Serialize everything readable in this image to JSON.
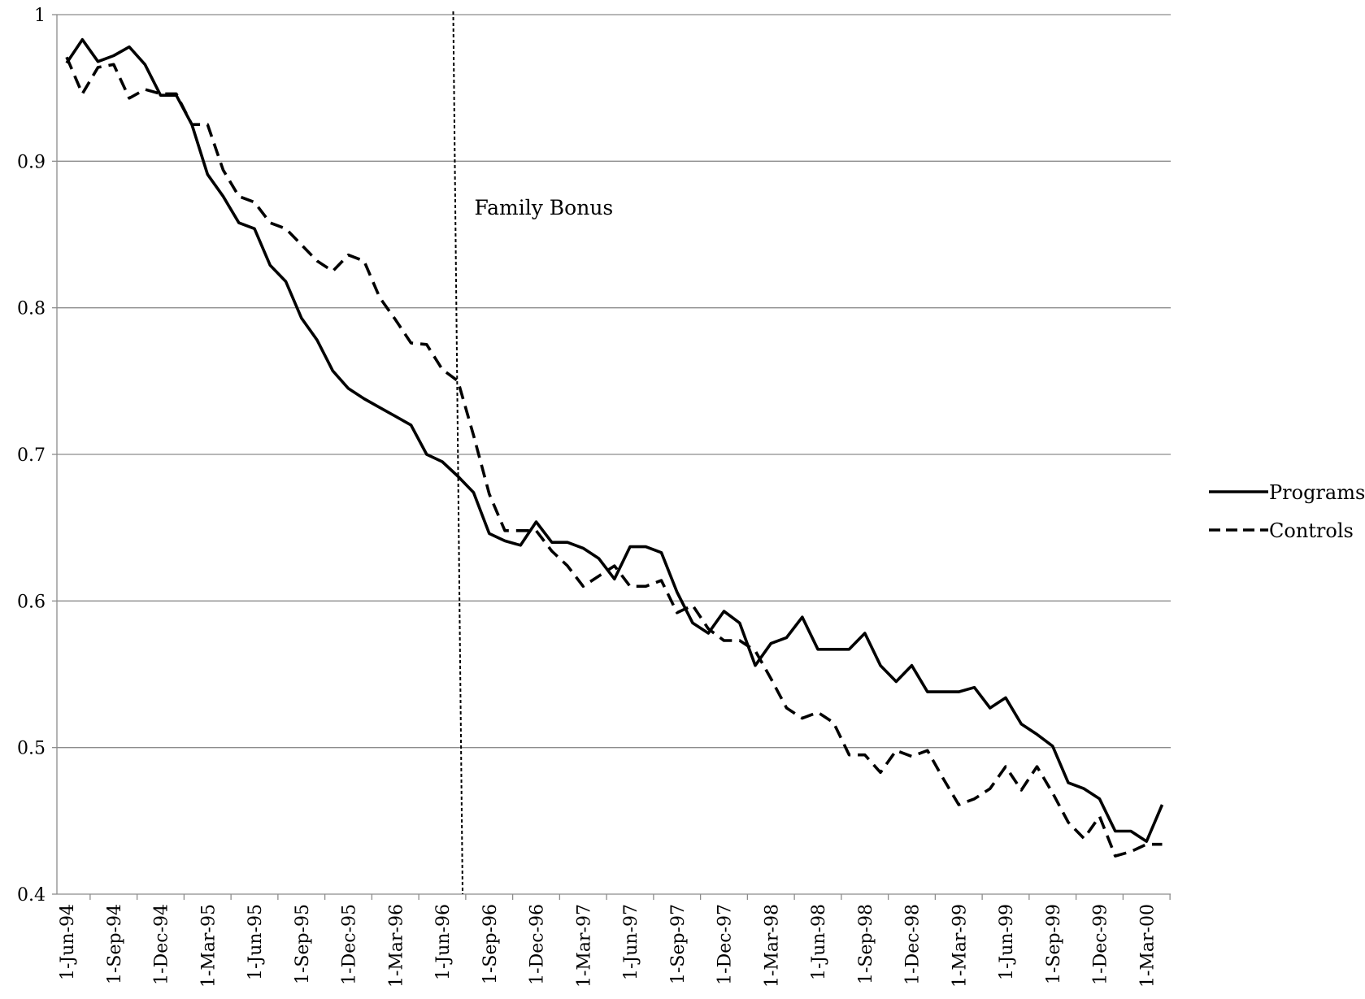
{
  "chart_data": {
    "type": "line",
    "title": "",
    "xlabel": "",
    "ylabel": "",
    "ylim": [
      0.4,
      1.0
    ],
    "yticks": [
      "0.4",
      "0.5",
      "0.6",
      "0.7",
      "0.8",
      "0.9",
      "1"
    ],
    "grid": "horizontal",
    "legend_position": "right",
    "x_tick_labels": [
      "1-Jun-94",
      "1-Sep-94",
      "1-Dec-94",
      "1-Mar-95",
      "1-Jun-95",
      "1-Sep-95",
      "1-Dec-95",
      "1-Mar-96",
      "1-Jun-96",
      "1-Sep-96",
      "1-Dec-96",
      "1-Mar-97",
      "1-Jun-97",
      "1-Sep-97",
      "1-Dec-97",
      "1-Mar-98",
      "1-Jun-98",
      "1-Sep-98",
      "1-Dec-98",
      "1-Mar-99",
      "1-Jun-99",
      "1-Sep-99",
      "1-Dec-99",
      "1-Mar-00"
    ],
    "x": [
      "Jun-94",
      "Jul-94",
      "Aug-94",
      "Sep-94",
      "Oct-94",
      "Nov-94",
      "Dec-94",
      "Jan-95",
      "Feb-95",
      "Mar-95",
      "Apr-95",
      "May-95",
      "Jun-95",
      "Jul-95",
      "Aug-95",
      "Sep-95",
      "Oct-95",
      "Nov-95",
      "Dec-95",
      "Jan-96",
      "Feb-96",
      "Mar-96",
      "Apr-96",
      "May-96",
      "Jun-96",
      "Jul-96",
      "Aug-96",
      "Sep-96",
      "Oct-96",
      "Nov-96",
      "Dec-96",
      "Jan-97",
      "Feb-97",
      "Mar-97",
      "Apr-97",
      "May-97",
      "Jun-97",
      "Jul-97",
      "Aug-97",
      "Sep-97",
      "Oct-97",
      "Nov-97",
      "Dec-97",
      "Jan-98",
      "Feb-98",
      "Mar-98",
      "Apr-98",
      "May-98",
      "Jun-98",
      "Jul-98",
      "Aug-98",
      "Sep-98",
      "Oct-98",
      "Nov-98",
      "Dec-98",
      "Jan-99",
      "Feb-99",
      "Mar-99",
      "Apr-99",
      "May-99",
      "Jun-99",
      "Jul-99",
      "Aug-99",
      "Sep-99",
      "Oct-99",
      "Nov-99",
      "Dec-99",
      "Jan-00",
      "Feb-00",
      "Mar-00",
      "Apr-00"
    ],
    "series": [
      {
        "name": "Programs",
        "style": "solid",
        "color": "#000000",
        "values": [
          0.967,
          0.983,
          0.968,
          0.972,
          0.978,
          0.966,
          0.945,
          0.945,
          0.925,
          0.891,
          0.876,
          0.858,
          0.854,
          0.829,
          0.818,
          0.793,
          0.778,
          0.757,
          0.745,
          0.738,
          0.732,
          0.726,
          0.72,
          0.7,
          0.695,
          0.685,
          0.674,
          0.646,
          0.641,
          0.638,
          0.654,
          0.64,
          0.64,
          0.636,
          0.629,
          0.615,
          0.637,
          0.637,
          0.633,
          0.606,
          0.585,
          0.578,
          0.593,
          0.585,
          0.556,
          0.571,
          0.575,
          0.589,
          0.567,
          0.567,
          0.567,
          0.578,
          0.556,
          0.545,
          0.556,
          0.538,
          0.538,
          0.538,
          0.541,
          0.527,
          0.534,
          0.516,
          0.509,
          0.501,
          0.476,
          0.472,
          0.465,
          0.443,
          0.443,
          0.436,
          0.461
        ]
      },
      {
        "name": "Controls",
        "style": "dashed",
        "color": "#000000",
        "values": [
          0.971,
          0.946,
          0.964,
          0.966,
          0.943,
          0.949,
          0.946,
          0.946,
          0.925,
          0.925,
          0.894,
          0.876,
          0.872,
          0.858,
          0.854,
          0.843,
          0.832,
          0.825,
          0.836,
          0.832,
          0.807,
          0.792,
          0.776,
          0.775,
          0.758,
          0.75,
          0.713,
          0.673,
          0.648,
          0.648,
          0.648,
          0.634,
          0.624,
          0.61,
          0.617,
          0.624,
          0.61,
          0.61,
          0.614,
          0.592,
          0.597,
          0.581,
          0.573,
          0.573,
          0.566,
          0.547,
          0.527,
          0.52,
          0.524,
          0.517,
          0.495,
          0.495,
          0.483,
          0.498,
          0.494,
          0.498,
          0.479,
          0.461,
          0.465,
          0.472,
          0.487,
          0.471,
          0.487,
          0.469,
          0.449,
          0.438,
          0.453,
          0.426,
          0.429,
          0.434,
          0.434
        ]
      }
    ],
    "annotations": [
      {
        "type": "vertical-line",
        "style": "dashed",
        "between": [
          "1-Jun-96",
          "1-Sep-96"
        ],
        "label": "Family Bonus"
      }
    ]
  }
}
